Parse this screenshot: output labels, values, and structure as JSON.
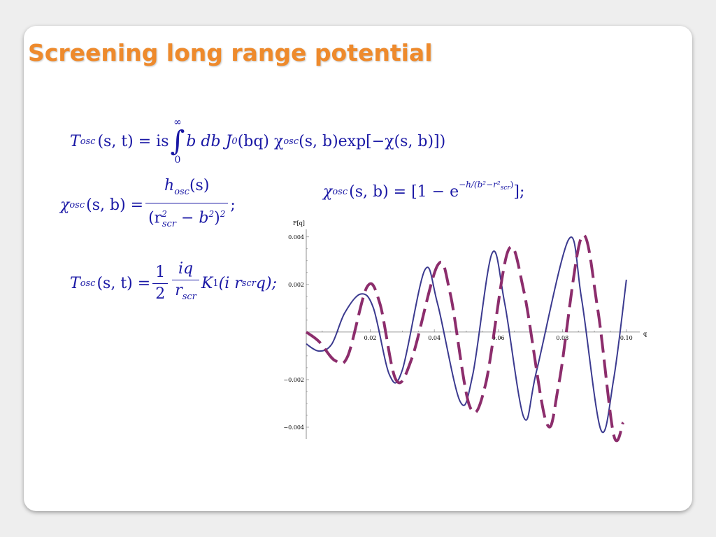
{
  "slide": {
    "title": "Screening long range potential"
  },
  "equations": {
    "t_osc_integral": {
      "lhs": "T",
      "lhs_sub": "osc",
      "lhs_args": "(s, t) = is",
      "int_upper": "∞",
      "int_lower": "0",
      "integrand_a": "b db J",
      "j_sub": "0",
      "integrand_b": "(bq)  χ",
      "chi_sub": "osc",
      "integrand_c": "(s, b) ",
      "exp_word": "exp",
      "integrand_d": "[−χ(s, b)])"
    },
    "chi_fraction": {
      "lhs": "χ",
      "lhs_sub": "osc",
      "lhs_args": "(s, b) = ",
      "num": "h",
      "num_sub": "osc",
      "num_args": "(s)",
      "den_a": "(r",
      "den_sup": "2",
      "den_sub": "scr",
      "den_b": " − b",
      "den_b_sup": "2",
      "den_c": ")",
      "den_c_sup": "2",
      "tail": ";"
    },
    "chi_exp": {
      "lhs": "χ",
      "lhs_sub": "osc",
      "lhs_args": "(s, b) = [1 − e",
      "exponent": "−h/(b²−r²",
      "exponent_sub": "scr",
      "exponent_end": ")",
      "tail": "];"
    },
    "t_osc_bessel": {
      "lhs": "T",
      "lhs_sub": "osc",
      "lhs_args": "(s, t) = ",
      "frac1_num": "1",
      "frac1_den": "2",
      "frac2_num": "iq",
      "frac2_den": "r",
      "frac2_den_sub": "scr",
      "k": "K",
      "k_sub": "1",
      "k_args": "(i r",
      "k_r_sub": "scr",
      "k_end": "q);"
    }
  },
  "chart_data": {
    "type": "line",
    "ylabel": "F[q]",
    "xlabel": "q",
    "xlim": [
      0,
      0.102
    ],
    "ylim": [
      -0.0045,
      0.0042
    ],
    "x_ticks": [
      0.02,
      0.04,
      0.06,
      0.08,
      0.1
    ],
    "x_tick_labels": [
      "0.02",
      "0.04",
      "0.06",
      "0.08",
      "0.10"
    ],
    "y_ticks": [
      0.004,
      0.002,
      -0.002,
      -0.004
    ],
    "y_tick_labels": [
      "0.004",
      "0.002",
      "−0.002",
      "−0.004"
    ],
    "series": [
      {
        "color": "#3b3a8f",
        "style": "solid",
        "points": [
          [
            0.0,
            -0.0005
          ],
          [
            0.004,
            -0.0008
          ],
          [
            0.008,
            -0.0005
          ],
          [
            0.012,
            0.0008
          ],
          [
            0.017,
            0.0016
          ],
          [
            0.021,
            0.001
          ],
          [
            0.026,
            -0.0018
          ],
          [
            0.03,
            -0.0016
          ],
          [
            0.037,
            0.0026
          ],
          [
            0.041,
            0.0012
          ],
          [
            0.048,
            -0.0029
          ],
          [
            0.052,
            -0.0018
          ],
          [
            0.058,
            0.0033
          ],
          [
            0.062,
            0.0012
          ],
          [
            0.068,
            -0.0036
          ],
          [
            0.072,
            -0.0016
          ],
          [
            0.082,
            0.0039
          ],
          [
            0.086,
            0.0014
          ],
          [
            0.092,
            -0.0041
          ],
          [
            0.096,
            -0.002
          ],
          [
            0.1,
            0.0022
          ]
        ]
      },
      {
        "color": "#8c2d6c",
        "style": "dashed",
        "points": [
          [
            0.0,
            0.0
          ],
          [
            0.004,
            -0.0004
          ],
          [
            0.009,
            -0.0012
          ],
          [
            0.013,
            -0.001
          ],
          [
            0.019,
            0.0019
          ],
          [
            0.023,
            0.0012
          ],
          [
            0.028,
            -0.002
          ],
          [
            0.033,
            -0.0011
          ],
          [
            0.041,
            0.0028
          ],
          [
            0.045,
            0.0016
          ],
          [
            0.051,
            -0.0031
          ],
          [
            0.056,
            -0.0022
          ],
          [
            0.063,
            0.0034
          ],
          [
            0.068,
            0.0017
          ],
          [
            0.075,
            -0.0038
          ],
          [
            0.079,
            -0.0021
          ],
          [
            0.086,
            0.004
          ],
          [
            0.091,
            0.001
          ],
          [
            0.096,
            -0.0043
          ],
          [
            0.099,
            -0.0038
          ]
        ]
      }
    ]
  }
}
